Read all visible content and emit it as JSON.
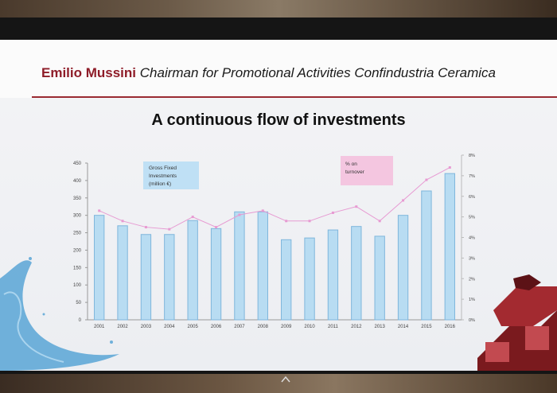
{
  "slide": {
    "speaker_name": "Emilio Mussini",
    "speaker_role": "Chairman for Promotional Activities Confindustria Ceramica",
    "title": "A continuous flow of investments"
  },
  "colors": {
    "bar_fill": "#b8dcf2",
    "bar_stroke": "#7fb6dc",
    "line": "#e79ad2",
    "header_rule": "#9a2b32",
    "speaker_name": "#8e1c28",
    "legend_investments_bg": "#bfe0f5",
    "legend_turnover_bg": "#f4c6e0"
  },
  "chart_data": {
    "type": "bar",
    "categories": [
      "2001",
      "2002",
      "2003",
      "2004",
      "2005",
      "2006",
      "2007",
      "2008",
      "2009",
      "2010",
      "2011",
      "2012",
      "2013",
      "2014",
      "2015",
      "2016"
    ],
    "series": [
      {
        "name": "Gross Fixed Investments (million €)",
        "type": "bar",
        "axis": "left",
        "values": [
          300,
          270,
          245,
          245,
          285,
          262,
          310,
          310,
          230,
          235,
          258,
          268,
          240,
          300,
          370,
          420
        ]
      },
      {
        "name": "% on turnover",
        "type": "line",
        "axis": "right",
        "values": [
          5.3,
          4.8,
          4.5,
          4.4,
          5.0,
          4.5,
          5.1,
          5.3,
          4.8,
          4.8,
          5.2,
          5.5,
          4.8,
          5.8,
          6.8,
          7.4
        ]
      }
    ],
    "legend": {
      "investments": [
        "Gross Fixed",
        "Investments",
        "(million €)"
      ],
      "turnover": [
        "% on",
        "turnover"
      ]
    },
    "y_left": {
      "ticks": [
        "0",
        "50",
        "100",
        "150",
        "200",
        "250",
        "300",
        "350",
        "400",
        "450"
      ],
      "ylim": [
        0,
        450
      ]
    },
    "y_right": {
      "ticks": [
        "0%",
        "1%",
        "2%",
        "3%",
        "4%",
        "5%",
        "6%",
        "7%",
        "8%"
      ],
      "ylim": [
        0,
        8
      ]
    },
    "grid": false
  }
}
